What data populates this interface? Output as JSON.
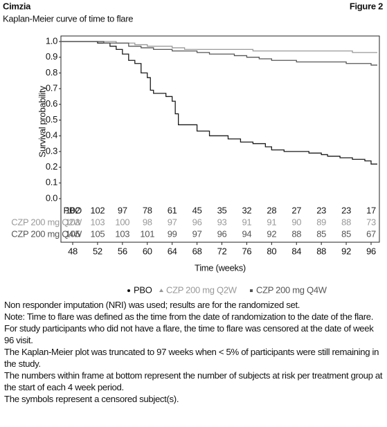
{
  "chart_data": {
    "type": "step",
    "brand": "Cimzia",
    "figure": "Figure 2",
    "title": "Kaplan-Meier curve of time to flare",
    "y_label": "Survival probability",
    "x_label": "Time (weeks)",
    "xlim": [
      48,
      96
    ],
    "ylim": [
      0,
      1
    ],
    "xticks": [
      48,
      52,
      56,
      60,
      64,
      68,
      72,
      76,
      80,
      84,
      88,
      92,
      96
    ],
    "yticks": [
      {
        "value": 1,
        "label": "1.0"
      },
      0.9,
      0.8,
      0.7,
      0.6,
      0.5,
      0.4,
      0.3,
      0.2,
      0.1,
      {
        "value": 0,
        "label": "0.0"
      }
    ],
    "series": [
      {
        "name": "PBO",
        "color": "#1a1a1a",
        "x": [
          46.2,
          52,
          54,
          55,
          56,
          57,
          58,
          59,
          60,
          60.5,
          61,
          63,
          64,
          64.5,
          65,
          68,
          70,
          73,
          75,
          77,
          79,
          80,
          82,
          86,
          88,
          89,
          91,
          93,
          95,
          96,
          97
        ],
        "values": [
          1.0,
          0.99,
          0.97,
          0.95,
          0.92,
          0.88,
          0.86,
          0.8,
          0.77,
          0.69,
          0.67,
          0.65,
          0.62,
          0.54,
          0.47,
          0.43,
          0.4,
          0.38,
          0.36,
          0.35,
          0.33,
          0.31,
          0.3,
          0.29,
          0.28,
          0.27,
          0.26,
          0.25,
          0.24,
          0.22,
          0.22
        ],
        "at_risk": [
          102,
          102,
          97,
          78,
          61,
          45,
          35,
          32,
          28,
          27,
          23,
          23,
          17
        ]
      },
      {
        "name": "CZP 200 mg Q2W",
        "color": "#999999",
        "x": [
          46.2,
          55,
          58,
          60,
          64,
          66,
          77,
          93,
          97
        ],
        "values": [
          1.0,
          0.99,
          0.98,
          0.97,
          0.96,
          0.95,
          0.94,
          0.93,
          0.93
        ],
        "at_risk": [
          103,
          103,
          100,
          98,
          97,
          96,
          93,
          91,
          91,
          90,
          89,
          88,
          73
        ]
      },
      {
        "name": "CZP 200 mg Q4W",
        "color": "#555555",
        "x": [
          46.2,
          53,
          57,
          59,
          61,
          64,
          68,
          70,
          74,
          76,
          78,
          80,
          84,
          92,
          96,
          97
        ],
        "values": [
          1.0,
          0.99,
          0.97,
          0.96,
          0.95,
          0.94,
          0.93,
          0.92,
          0.91,
          0.9,
          0.89,
          0.88,
          0.87,
          0.86,
          0.85,
          0.85
        ],
        "at_risk": [
          105,
          105,
          103,
          101,
          99,
          97,
          96,
          94,
          92,
          88,
          85,
          85,
          67
        ]
      }
    ],
    "notes": [
      "Non responder imputation (NRI) was used; results are for the randomized set.",
      "Note: Time to flare was defined as the time from the date of randomization to the date of the flare. For study participants who did not have a flare, the time to flare was censored at the date of week 96 visit.",
      "The Kaplan-Meier plot was truncated to 97 weeks when < 5% of participants were still remaining in the study.",
      "The numbers within frame at bottom represent the number of subjects at risk per treatment group at the start of each 4 week period.",
      "The symbols represent a censored subject(s)."
    ]
  }
}
